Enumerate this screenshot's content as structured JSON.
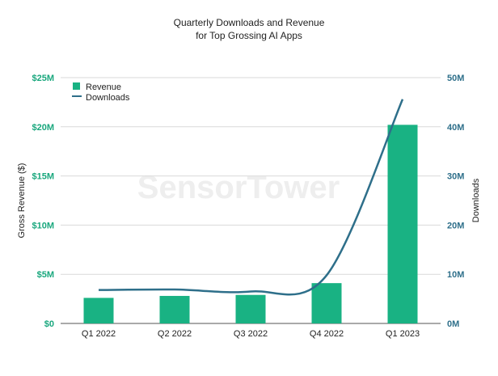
{
  "chart_data": {
    "type": "bar",
    "title": "Quarterly Downloads and Revenue",
    "subtitle": "for Top Grossing AI Apps",
    "categories": [
      "Q1 2022",
      "Q2 2022",
      "Q3 2022",
      "Q4 2022",
      "Q1 2023"
    ],
    "series": [
      {
        "name": "Revenue",
        "type": "bar",
        "axis": "left",
        "values": [
          2.6,
          2.8,
          2.9,
          4.1,
          20.2
        ],
        "color": "#19b283"
      },
      {
        "name": "Downloads",
        "type": "line",
        "axis": "right",
        "values": [
          6.8,
          6.9,
          6.5,
          9.8,
          45.6
        ],
        "color": "#2e6f8a"
      }
    ],
    "ylabel": "Gross Revenue ($)",
    "y2label": "Downloads",
    "ylim": [
      0,
      25
    ],
    "y2lim": [
      0,
      50
    ],
    "yticks": [
      "$0",
      "$5M",
      "$10M",
      "$15M",
      "$20M",
      "$25M"
    ],
    "y2ticks": [
      "0M",
      "10M",
      "20M",
      "30M",
      "40M",
      "50M"
    ],
    "grid": true,
    "legend_position": "top-left"
  },
  "watermark": "SensorTower"
}
